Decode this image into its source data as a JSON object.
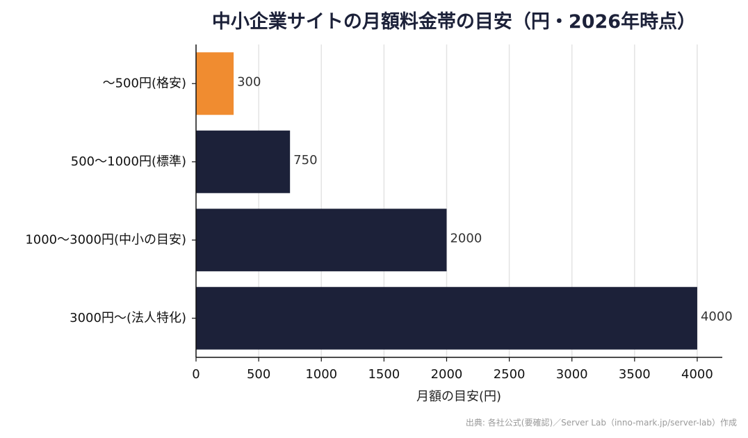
{
  "chart_data": {
    "type": "bar",
    "orientation": "horizontal",
    "title": "中小企業サイトの月額料金帯の目安（円・2026年時点）",
    "categories": [
      "〜500円(格安)",
      "500〜1000円(標準)",
      "1000〜3000円(中小の目安)",
      "3000円〜(法人特化)"
    ],
    "values": [
      300,
      750,
      2000,
      4000
    ],
    "value_labels": [
      "300",
      "750",
      "2000",
      "4000"
    ],
    "bar_colors": [
      "#f08c30",
      "#1c2139",
      "#1c2139",
      "#1c2139"
    ],
    "xlabel": "月額の目安(円)",
    "ylabel": "",
    "xlim": [
      0,
      4200
    ],
    "xticks": [
      0,
      500,
      1000,
      1500,
      2000,
      2500,
      3000,
      3500,
      4000
    ],
    "xtick_labels": [
      "0",
      "500",
      "1000",
      "1500",
      "2000",
      "2500",
      "3000",
      "3500",
      "4000"
    ],
    "grid": "vertical",
    "legend": "none",
    "source": "出典: 各社公式(要確認)／Server Lab（inno-mark.jp/server-lab）作成"
  }
}
